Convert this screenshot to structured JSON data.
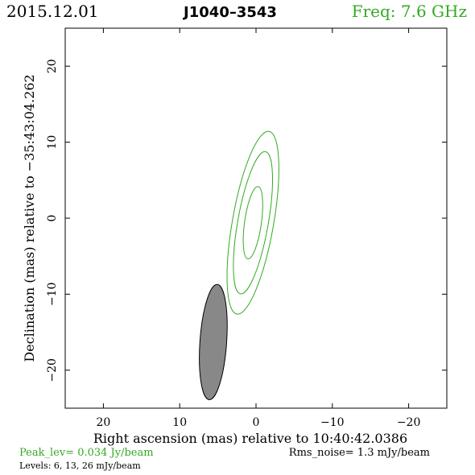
{
  "header": {
    "date": "2015.12.01",
    "source": "J1040–3543",
    "freq": "Freq: 7.6 GHz"
  },
  "footer": {
    "peak": "Peak_lev=  0.034 Jy/beam",
    "rms": "Rms_noise=   1.3 mJy/beam",
    "levels": "Levels:   6,   13,   26 mJy/beam"
  },
  "colors": {
    "green": "#33aa22",
    "beam_fill": "#888888",
    "axis": "#000000"
  },
  "chart_data": {
    "type": "contour",
    "xlabel": "Right ascension (mas) relative to 10:40:42.0386",
    "ylabel": "Declination (mas) relative to −35:43:04.262",
    "xlim": [
      25,
      -25
    ],
    "ylim": [
      -25,
      25
    ],
    "xticks": [
      20,
      10,
      0,
      -10,
      -20
    ],
    "yticks": [
      20,
      10,
      0,
      -10,
      -20
    ],
    "xtick_labels": [
      "20",
      "10",
      "0",
      "−10",
      "−20"
    ],
    "ytick_labels": [
      "20",
      "10",
      "0",
      "−10",
      "−20"
    ],
    "contours": [
      {
        "level_mJy": 6,
        "x0": 0.4,
        "y0": -0.6,
        "semi_major": 12.2,
        "semi_minor": 2.7,
        "pa_deg": 10
      },
      {
        "level_mJy": 13,
        "x0": 0.4,
        "y0": -0.6,
        "semi_major": 9.5,
        "semi_minor": 2.0,
        "pa_deg": 10
      },
      {
        "level_mJy": 26,
        "x0": 0.4,
        "y0": -0.6,
        "semi_major": 4.8,
        "semi_minor": 1.1,
        "pa_deg": 8
      }
    ],
    "beam": {
      "x0": 5.6,
      "y0": -16.3,
      "semi_major": 7.6,
      "semi_minor": 1.75,
      "pa_deg": 4
    }
  }
}
